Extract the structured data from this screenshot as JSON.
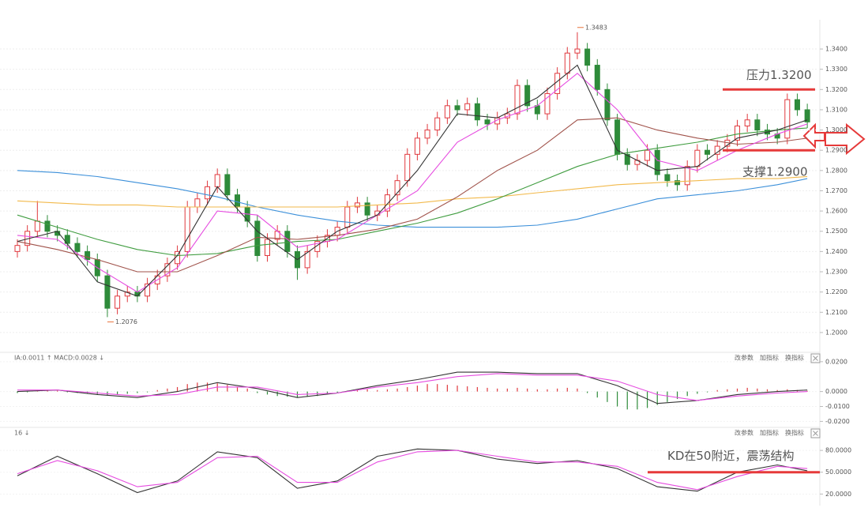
{
  "chart_data": [
    {
      "type": "candlestick",
      "ylim": [
        1.1906,
        1.3525
      ],
      "yticks": [
        {
          "value": 1.2,
          "label": "1.2000"
        },
        {
          "value": 1.21,
          "label": "1.2100"
        },
        {
          "value": 1.22,
          "label": "1.2200"
        },
        {
          "value": 1.23,
          "label": "1.2300"
        },
        {
          "value": 1.24,
          "label": "1.2400"
        },
        {
          "value": 1.25,
          "label": "1.2500"
        },
        {
          "value": 1.26,
          "label": "1.2600"
        },
        {
          "value": 1.27,
          "label": "1.2700"
        },
        {
          "value": 1.28,
          "label": "1.2800"
        },
        {
          "value": 1.29,
          "label": "1.2900"
        },
        {
          "value": 1.3,
          "label": "1.3000"
        },
        {
          "value": 1.31,
          "label": "1.3100"
        },
        {
          "value": 1.32,
          "label": "1.3200"
        },
        {
          "value": 1.33,
          "label": "1.3300"
        },
        {
          "value": 1.34,
          "label": "1.3400"
        }
      ],
      "grid": true,
      "up_color": "#e0393e",
      "down_color": "#2e8b3a",
      "extreme_color": "#e8743b",
      "open": [
        1.24,
        1.243,
        1.25,
        1.255,
        1.25,
        1.248,
        1.244,
        1.24,
        1.236,
        1.228,
        1.212,
        1.218,
        1.22,
        1.218,
        1.224,
        1.228,
        1.234,
        1.24,
        1.262,
        1.266,
        1.272,
        1.278,
        1.268,
        1.262,
        1.255,
        1.238,
        1.246,
        1.25,
        1.24,
        1.232,
        1.24,
        1.245,
        1.248,
        1.252,
        1.262,
        1.264,
        1.258,
        1.26,
        1.268,
        1.275,
        1.288,
        1.296,
        1.3,
        1.306,
        1.312,
        1.31,
        1.313,
        1.305,
        1.303,
        1.306,
        1.308,
        1.322,
        1.312,
        1.308,
        1.318,
        1.328,
        1.338,
        1.34,
        1.332,
        1.32,
        1.305,
        1.288,
        1.283,
        1.285,
        1.29,
        1.278,
        1.275,
        1.273,
        1.282,
        1.29,
        1.288,
        1.292,
        1.295,
        1.302,
        1.305,
        1.3,
        1.298,
        1.296,
        1.315,
        1.31
      ],
      "high": [
        1.246,
        1.253,
        1.265,
        1.258,
        1.253,
        1.251,
        1.247,
        1.243,
        1.239,
        1.231,
        1.221,
        1.223,
        1.223,
        1.227,
        1.231,
        1.237,
        1.243,
        1.265,
        1.269,
        1.275,
        1.281,
        1.281,
        1.271,
        1.265,
        1.258,
        1.249,
        1.253,
        1.253,
        1.243,
        1.243,
        1.248,
        1.251,
        1.255,
        1.265,
        1.267,
        1.267,
        1.263,
        1.271,
        1.278,
        1.291,
        1.299,
        1.303,
        1.309,
        1.315,
        1.315,
        1.316,
        1.316,
        1.308,
        1.309,
        1.311,
        1.325,
        1.325,
        1.315,
        1.321,
        1.331,
        1.341,
        1.3483,
        1.343,
        1.335,
        1.323,
        1.308,
        1.291,
        1.288,
        1.293,
        1.293,
        1.281,
        1.278,
        1.285,
        1.293,
        1.293,
        1.295,
        1.298,
        1.305,
        1.308,
        1.308,
        1.303,
        1.301,
        1.318,
        1.318,
        1.313
      ],
      "low": [
        1.237,
        1.24,
        1.247,
        1.247,
        1.245,
        1.241,
        1.237,
        1.233,
        1.225,
        1.2076,
        1.209,
        1.215,
        1.215,
        1.215,
        1.221,
        1.225,
        1.231,
        1.237,
        1.259,
        1.263,
        1.269,
        1.265,
        1.259,
        1.252,
        1.235,
        1.235,
        1.243,
        1.237,
        1.226,
        1.229,
        1.237,
        1.242,
        1.245,
        1.249,
        1.259,
        1.255,
        1.255,
        1.257,
        1.265,
        1.272,
        1.285,
        1.293,
        1.297,
        1.303,
        1.307,
        1.307,
        1.302,
        1.3,
        1.3,
        1.303,
        1.305,
        1.309,
        1.305,
        1.305,
        1.315,
        1.325,
        1.335,
        1.329,
        1.317,
        1.302,
        1.285,
        1.28,
        1.28,
        1.282,
        1.275,
        1.272,
        1.27,
        1.27,
        1.279,
        1.285,
        1.285,
        1.289,
        1.292,
        1.299,
        1.297,
        1.295,
        1.293,
        1.293,
        1.307,
        1.301
      ],
      "close": [
        1.243,
        1.25,
        1.255,
        1.25,
        1.248,
        1.244,
        1.24,
        1.236,
        1.228,
        1.212,
        1.218,
        1.22,
        1.218,
        1.224,
        1.228,
        1.234,
        1.24,
        1.262,
        1.266,
        1.272,
        1.278,
        1.268,
        1.262,
        1.255,
        1.238,
        1.246,
        1.25,
        1.24,
        1.232,
        1.24,
        1.245,
        1.248,
        1.252,
        1.262,
        1.264,
        1.258,
        1.26,
        1.268,
        1.275,
        1.288,
        1.296,
        1.3,
        1.306,
        1.312,
        1.31,
        1.313,
        1.305,
        1.303,
        1.306,
        1.308,
        1.322,
        1.312,
        1.308,
        1.318,
        1.328,
        1.338,
        1.34,
        1.332,
        1.32,
        1.305,
        1.288,
        1.283,
        1.285,
        1.29,
        1.278,
        1.275,
        1.273,
        1.282,
        1.29,
        1.288,
        1.292,
        1.295,
        1.302,
        1.305,
        1.3,
        1.298,
        1.296,
        1.315,
        1.31,
        1.304
      ],
      "series": [
        {
          "color": "#3b8fd9",
          "x": [
            0,
            4,
            8,
            12,
            16,
            20,
            24,
            28,
            32,
            36,
            40,
            44,
            48,
            52,
            56,
            60,
            64,
            68,
            72,
            76,
            79
          ],
          "values": [
            1.28,
            1.279,
            1.277,
            1.274,
            1.271,
            1.267,
            1.262,
            1.258,
            1.255,
            1.253,
            1.252,
            1.252,
            1.252,
            1.253,
            1.256,
            1.261,
            1.266,
            1.268,
            1.27,
            1.273,
            1.276
          ]
        },
        {
          "color": "#f2b94b",
          "x": [
            0,
            4,
            8,
            12,
            16,
            20,
            24,
            28,
            32,
            36,
            40,
            44,
            48,
            52,
            56,
            60,
            64,
            68,
            72,
            76,
            79
          ],
          "values": [
            1.265,
            1.264,
            1.263,
            1.263,
            1.262,
            1.262,
            1.262,
            1.262,
            1.262,
            1.263,
            1.264,
            1.266,
            1.267,
            1.269,
            1.271,
            1.273,
            1.274,
            1.275,
            1.276,
            1.276,
            1.277
          ]
        },
        {
          "color": "#3f9c3f",
          "x": [
            0,
            4,
            8,
            12,
            16,
            20,
            24,
            28,
            32,
            36,
            40,
            44,
            48,
            52,
            56,
            60,
            64,
            68,
            72,
            76,
            79
          ],
          "values": [
            1.258,
            1.252,
            1.246,
            1.241,
            1.238,
            1.239,
            1.243,
            1.245,
            1.246,
            1.25,
            1.254,
            1.259,
            1.266,
            1.274,
            1.282,
            1.288,
            1.291,
            1.294,
            1.298,
            1.3,
            1.301
          ]
        },
        {
          "color": "#a0524a",
          "x": [
            0,
            4,
            8,
            12,
            16,
            20,
            24,
            28,
            32,
            36,
            40,
            44,
            48,
            52,
            56,
            60,
            64,
            68,
            72,
            76,
            79
          ],
          "values": [
            1.245,
            1.241,
            1.236,
            1.23,
            1.23,
            1.238,
            1.247,
            1.246,
            1.248,
            1.251,
            1.256,
            1.267,
            1.28,
            1.29,
            1.305,
            1.306,
            1.3,
            1.296,
            1.293,
            1.294,
            1.296
          ]
        },
        {
          "color": "#e64ce0",
          "x": [
            0,
            4,
            8,
            12,
            16,
            20,
            24,
            28,
            32,
            36,
            40,
            44,
            48,
            52,
            56,
            60,
            64,
            68,
            72,
            76,
            79
          ],
          "values": [
            1.248,
            1.246,
            1.232,
            1.22,
            1.232,
            1.26,
            1.258,
            1.242,
            1.246,
            1.258,
            1.27,
            1.294,
            1.305,
            1.312,
            1.328,
            1.31,
            1.285,
            1.28,
            1.29,
            1.298,
            1.303
          ]
        },
        {
          "color": "#333333",
          "x": [
            0,
            4,
            8,
            12,
            16,
            20,
            24,
            28,
            32,
            36,
            40,
            44,
            48,
            52,
            56,
            60,
            64,
            68,
            72,
            76,
            79
          ],
          "values": [
            1.245,
            1.25,
            1.225,
            1.218,
            1.238,
            1.272,
            1.25,
            1.236,
            1.25,
            1.258,
            1.28,
            1.308,
            1.306,
            1.316,
            1.332,
            1.29,
            1.28,
            1.282,
            1.296,
            1.3,
            1.305
          ]
        }
      ],
      "annotations": [
        {
          "text": "压力1.3200",
          "value": 1.32,
          "color": "#e63a3a"
        },
        {
          "text": "支撑1.2900",
          "value": 1.29,
          "color": "#e63a3a"
        }
      ]
    },
    {
      "type": "bar",
      "header": "IA:0.0011 ↑ MACD:0.0028 ↓",
      "buttons": [
        "改参数",
        "加指标",
        "换指标"
      ],
      "ylim": [
        -0.0235,
        0.0215
      ],
      "yticks": [
        {
          "value": 0.02,
          "label": "0.0200"
        },
        {
          "value": 0,
          "label": "0.0000"
        },
        {
          "value": -0.01,
          "label": "-0.0100"
        },
        {
          "value": -0.02,
          "label": "-0.0200"
        }
      ],
      "up_color": "#e0393e",
      "down_color": "#2e8b3a",
      "values": [
        -0.001,
        -0.0005,
        0.0005,
        0.001,
        0.0005,
        -0.0005,
        -0.001,
        -0.0015,
        -0.002,
        -0.0025,
        -0.002,
        -0.0015,
        -0.001,
        -0.0005,
        0.001,
        0.002,
        0.003,
        0.005,
        0.006,
        0.006,
        0.0055,
        0.0045,
        0.003,
        0.002,
        -0.001,
        -0.002,
        -0.003,
        -0.0035,
        -0.004,
        -0.0035,
        -0.003,
        -0.002,
        -0.001,
        0.0005,
        0.001,
        0.0015,
        0.001,
        0.0015,
        0.002,
        0.003,
        0.004,
        0.005,
        0.005,
        0.0045,
        0.004,
        0.0035,
        0.003,
        0.0025,
        0.002,
        0.002,
        0.0025,
        0.002,
        0.0015,
        0.0015,
        0.002,
        0.0025,
        0.002,
        -0.001,
        -0.004,
        -0.007,
        -0.01,
        -0.012,
        -0.012,
        -0.011,
        -0.009,
        -0.007,
        -0.005,
        -0.003,
        -0.0015,
        -0.0005,
        0.001,
        0.0015,
        0.002,
        0.0025,
        0.002,
        0.0015,
        0.001,
        0.0015,
        0.001,
        0.0005
      ],
      "series": [
        {
          "color": "#333333",
          "x": [
            0,
            4,
            8,
            12,
            16,
            20,
            24,
            28,
            32,
            36,
            40,
            44,
            48,
            52,
            56,
            60,
            64,
            68,
            72,
            76,
            79
          ],
          "values": [
            0.0,
            0.001,
            -0.002,
            -0.004,
            0.0,
            0.006,
            0.002,
            -0.004,
            -0.001,
            0.004,
            0.008,
            0.013,
            0.013,
            0.012,
            0.012,
            0.004,
            -0.008,
            -0.006,
            -0.002,
            0.0,
            0.001
          ]
        },
        {
          "color": "#e64ce0",
          "x": [
            0,
            4,
            8,
            12,
            16,
            20,
            24,
            28,
            32,
            36,
            40,
            44,
            48,
            52,
            56,
            60,
            64,
            68,
            72,
            76,
            79
          ],
          "values": [
            0.001,
            0.001,
            -0.001,
            -0.003,
            -0.002,
            0.003,
            0.003,
            -0.002,
            -0.001,
            0.003,
            0.006,
            0.01,
            0.012,
            0.011,
            0.011,
            0.007,
            -0.002,
            -0.006,
            -0.003,
            -0.001,
            0.0
          ]
        }
      ]
    },
    {
      "type": "line",
      "header": "16 ↓",
      "buttons": [
        "改参数",
        "加指标",
        "换指标"
      ],
      "ylim": [
        9.5,
        104
      ],
      "yticks": [
        {
          "value": 80,
          "label": "80.0000"
        },
        {
          "value": 50,
          "label": "50.0000"
        },
        {
          "value": 20,
          "label": "20.0000"
        }
      ],
      "series": [
        {
          "color": "#333333",
          "x": [
            0,
            4,
            8,
            12,
            16,
            20,
            24,
            28,
            32,
            36,
            40,
            44,
            48,
            52,
            56,
            60,
            64,
            68,
            72,
            76,
            79
          ],
          "values": [
            45,
            72,
            48,
            22,
            38,
            78,
            70,
            28,
            38,
            72,
            82,
            80,
            68,
            62,
            66,
            55,
            30,
            24,
            50,
            60,
            52
          ]
        },
        {
          "color": "#e64ce0",
          "x": [
            0,
            4,
            8,
            12,
            16,
            20,
            24,
            28,
            32,
            36,
            40,
            44,
            48,
            52,
            56,
            60,
            64,
            68,
            72,
            76,
            79
          ],
          "values": [
            48,
            66,
            52,
            30,
            36,
            70,
            72,
            36,
            36,
            64,
            78,
            80,
            72,
            64,
            64,
            58,
            36,
            26,
            44,
            58,
            55
          ]
        }
      ],
      "annotations": [
        {
          "text": "KD在50附近，震荡结构",
          "value": 50,
          "color": "#e63a3a"
        }
      ]
    }
  ]
}
